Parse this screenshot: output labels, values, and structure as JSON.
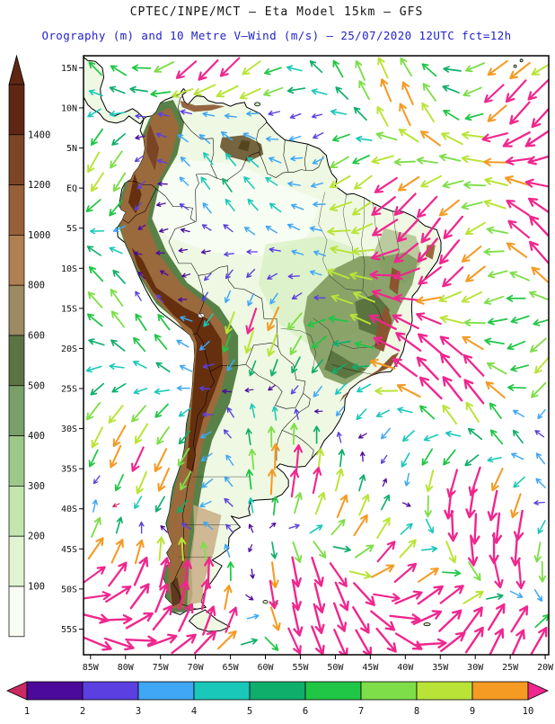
{
  "header": {
    "title1": "CPTEC/INPE/MCT —  Eta Model 15km — GFS",
    "title2": "Orography (m) and 10 Metre V–Wind (m/s) — 25/07/2020 12UTC fct=12h"
  },
  "orography_colorbar": {
    "unit_labels_top_to_bottom": [
      "1400",
      "1200",
      "1000",
      "800",
      "600",
      "500",
      "400",
      "300",
      "200",
      "100"
    ],
    "segment_colors_top_to_bottom": [
      "#5f2713",
      "#7c4526",
      "#976038",
      "#b07f52",
      "#9b8a62",
      "#5c7444",
      "#78a068",
      "#9cc88a",
      "#c2e6ae",
      "#e0f4d2",
      "#f8fdf3"
    ],
    "arrow_color": "#5f2713"
  },
  "wind_colorbar": {
    "labels": [
      "1",
      "2",
      "3",
      "4",
      "5",
      "6",
      "7",
      "8",
      "9",
      "10"
    ],
    "segment_colors": [
      "#4b0a9b",
      "#5b3fe0",
      "#3fa7f5",
      "#19c8b9",
      "#0fae6b",
      "#20c645",
      "#7ede49",
      "#b9e437",
      "#f59a23"
    ],
    "below_min_color": "#c92a62",
    "above_max_color": "#f0268e"
  },
  "map": {
    "lat_labels": [
      "15N",
      "10N",
      "5N",
      "EQ",
      "5S",
      "10S",
      "15S",
      "20S",
      "25S",
      "30S",
      "35S",
      "40S",
      "45S",
      "50S",
      "55S"
    ],
    "lon_labels": [
      "85W",
      "80W",
      "75W",
      "70W",
      "65W",
      "60W",
      "55W",
      "50W",
      "45W",
      "40W",
      "35W",
      "30W",
      "25W",
      "20W"
    ],
    "ocean_color": "#ffffff",
    "land_color": "#eef8e3",
    "coast_color": "#000000"
  }
}
